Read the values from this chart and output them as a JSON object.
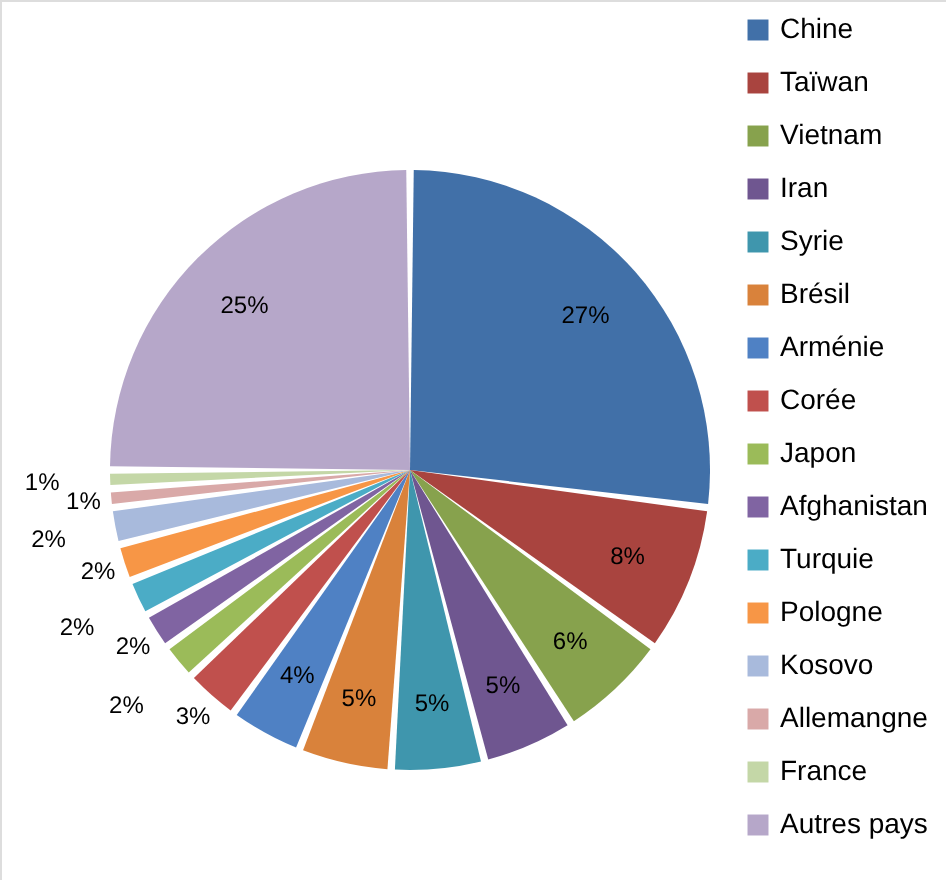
{
  "chart_data": {
    "type": "pie",
    "categories": [
      "Chine",
      "Taïwan",
      "Vietnam",
      "Iran",
      "Syrie",
      "Brésil",
      "Arménie",
      "Corée",
      "Japon",
      "Afghanistan",
      "Turquie",
      "Pologne",
      "Kosovo",
      "Allemangne",
      "France",
      "Autres pays"
    ],
    "values": [
      27,
      8,
      6,
      5,
      5,
      5,
      4,
      3,
      2,
      2,
      2,
      2,
      2,
      1,
      1,
      25
    ],
    "colors": [
      "#4170a8",
      "#a9443f",
      "#87a24d",
      "#6f5690",
      "#3f96ad",
      "#d9823b",
      "#4f81c4",
      "#c0504d",
      "#9bbb59",
      "#8064a2",
      "#4bacc6",
      "#f79646",
      "#a8badc",
      "#d9a9a8",
      "#c4d7a7",
      "#b6a7c9"
    ],
    "value_labels": [
      "27%",
      "8%",
      "6%",
      "5%",
      "5%",
      "5%",
      "4%",
      "3%",
      "2%",
      "2%",
      "2%",
      "2%",
      "2%",
      "1%",
      "1%",
      "25%"
    ],
    "legend": "right"
  }
}
